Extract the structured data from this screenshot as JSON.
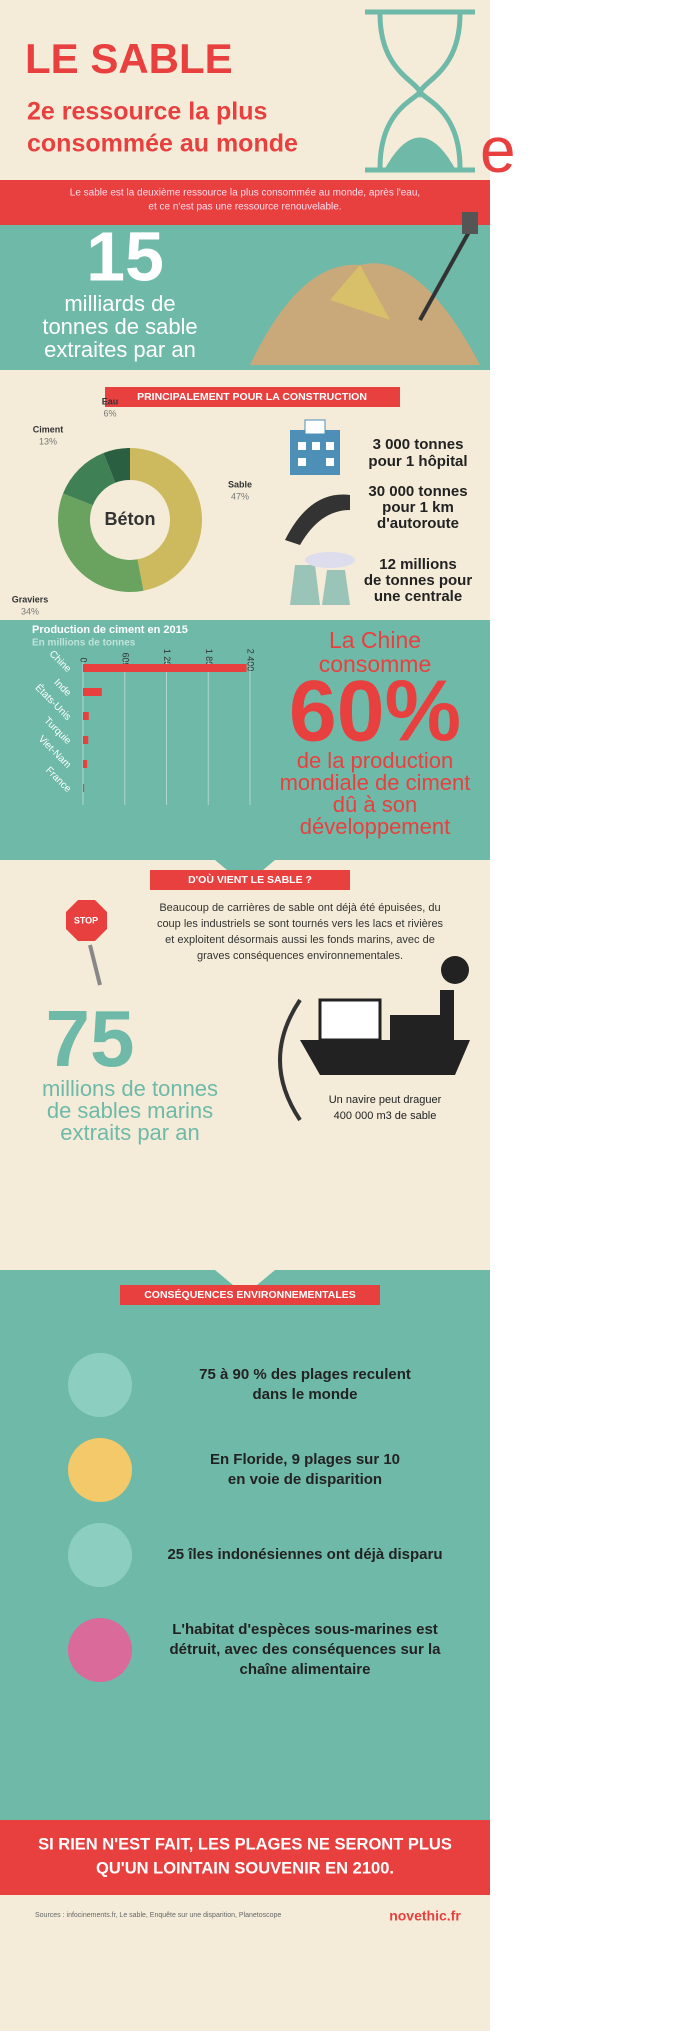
{
  "header": {
    "title": "LE SABLE",
    "subtitle_lines": [
      "2e ressource la plus",
      "consommée au monde"
    ]
  },
  "intro": [
    "Le sable est la deuxième ressource la plus consommée au monde, après l'eau,",
    "et ce n'est pas une ressource renouvelable."
  ],
  "extraction": {
    "number": "15",
    "lines": [
      "milliards de",
      "tonnes de sable",
      "extraites par an"
    ]
  },
  "construction": {
    "banner": "PRINCIPALEMENT POUR LA CONSTRUCTION",
    "facts": [
      [
        "3 000 tonnes",
        "pour 1 hôpital"
      ],
      [
        "30 000 tonnes",
        "pour 1 km",
        "d'autoroute"
      ],
      [
        "12 millions",
        "de tonnes pour",
        "une centrale"
      ]
    ]
  },
  "chart_data": [
    {
      "type": "donut",
      "center_label": "Béton",
      "categories": [
        "Sable",
        "Graviers",
        "Ciment",
        "Eau"
      ],
      "values": [
        47,
        34,
        13,
        6
      ],
      "value_labels": [
        "47%",
        "34%",
        "13%",
        "6%"
      ],
      "colors": [
        "#cdb95e",
        "#6aa35f",
        "#3f8055",
        "#2a5f42"
      ]
    },
    {
      "type": "bar",
      "orientation": "horizontal",
      "title": "Production de ciment en 2015",
      "subtitle": "En millions de tonnes",
      "categories": [
        "Chine",
        "Inde",
        "États-Unis",
        "Turquie",
        "Viet-Nam",
        "France"
      ],
      "values": [
        2350,
        270,
        83,
        75,
        60,
        16
      ],
      "color": "#e8403f",
      "xlim": [
        0,
        2400
      ],
      "xticks": [
        0,
        600,
        {
          "value": 1200,
          "label": "1 200"
        },
        {
          "value": 1800,
          "label": "1 800"
        },
        {
          "value": 2400,
          "label": "2 400"
        }
      ],
      "grid": true
    }
  ],
  "china": {
    "lines_top": [
      "La Chine",
      "consomme"
    ],
    "figure": "60%",
    "lines_bottom": [
      "de la production",
      "mondiale de ciment",
      "dû à son",
      "développement"
    ]
  },
  "origin": {
    "banner": "D'OÙ VIENT LE SABLE ?",
    "stop": "STOP",
    "paragraph": [
      "Beaucoup de carrières de sable ont déjà été épuisées, du",
      "coup les industriels se sont tournés vers les lacs et rivières",
      "et exploitent désormais aussi les fonds marins, avec de",
      "graves conséquences environnementales."
    ],
    "number": "75",
    "lines": [
      "millions de tonnes",
      "de sables marins",
      "extraits par an"
    ],
    "ship_caption": [
      "Un navire peut draguer",
      "400 000 m3 de sable"
    ]
  },
  "consequences": {
    "banner": "CONSÉQUENCES ENVIRONNEMENTALES",
    "items": [
      [
        "75 à 90 % des plages reculent",
        "dans le monde"
      ],
      [
        "En Floride, 9 plages sur 10",
        "en voie de disparition"
      ],
      [
        "25 îles indonésiennes ont déjà disparu"
      ],
      [
        "L'habitat d'espèces sous-marines est",
        "détruit, avec des conséquences sur la",
        "chaîne alimentaire"
      ]
    ]
  },
  "warning": [
    "SI RIEN N'EST FAIT, LES PLAGES NE SERONT PLUS",
    "QU'UN LOINTAIN SOUVENIR EN 2100."
  ],
  "footer": {
    "sources": "Sources : infocinements.fr, Le sable, Enquête sur une disparition, Planetoscope",
    "brand": "novethic.fr"
  },
  "overflow": {
    "letter": "e"
  }
}
